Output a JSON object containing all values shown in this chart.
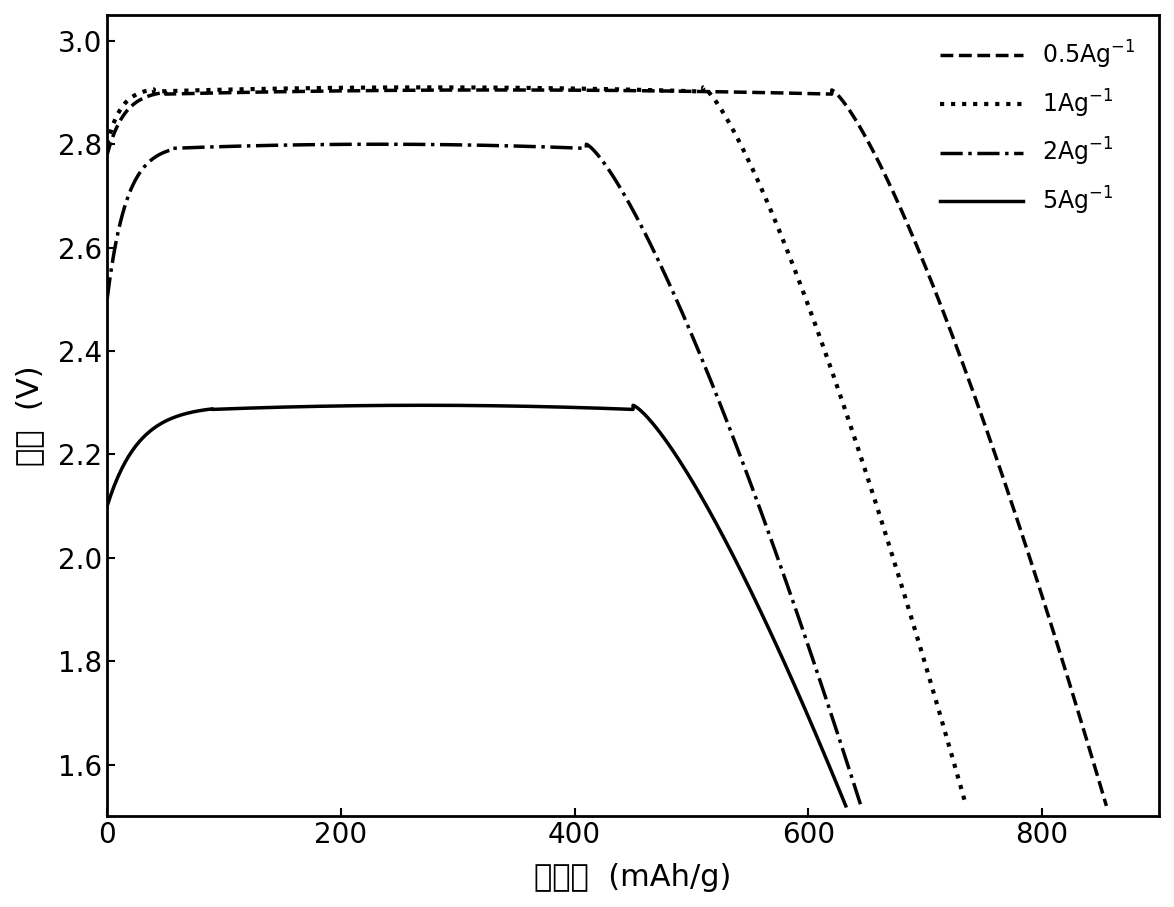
{
  "title": "",
  "xlabel": "比容量  (mAh/g)",
  "ylabel": "电压  (V)",
  "xlim": [
    0,
    900
  ],
  "ylim": [
    1.5,
    3.05
  ],
  "xticks": [
    0,
    200,
    400,
    600,
    800
  ],
  "yticks": [
    1.6,
    1.8,
    2.0,
    2.2,
    2.4,
    2.6,
    2.8,
    3.0
  ],
  "background_color": "#ffffff",
  "curve_params": [
    {
      "label": "0.5Ag$^{-1}$",
      "linestyle": "--",
      "color": "#000000",
      "linewidth": 2.5,
      "start_v": 2.78,
      "flat_v": 2.905,
      "rise_end": 50,
      "plateau_end": 620,
      "end_x": 855,
      "end_v": 1.52
    },
    {
      "label": "1Ag$^{-1}$",
      "linestyle": ":",
      "color": "#000000",
      "linewidth": 3.0,
      "start_v": 2.8,
      "flat_v": 2.91,
      "rise_end": 40,
      "plateau_end": 510,
      "end_x": 735,
      "end_v": 1.52
    },
    {
      "label": "2Ag$^{-1}$",
      "linestyle": "-.",
      "color": "#000000",
      "linewidth": 2.5,
      "start_v": 2.5,
      "flat_v": 2.8,
      "rise_end": 55,
      "plateau_end": 410,
      "end_x": 645,
      "end_v": 1.52
    },
    {
      "label": "5Ag$^{-1}$",
      "linestyle": "-",
      "color": "#000000",
      "linewidth": 2.5,
      "start_v": 2.1,
      "flat_v": 2.295,
      "rise_end": 90,
      "plateau_end": 450,
      "end_x": 632,
      "end_v": 1.52
    }
  ]
}
